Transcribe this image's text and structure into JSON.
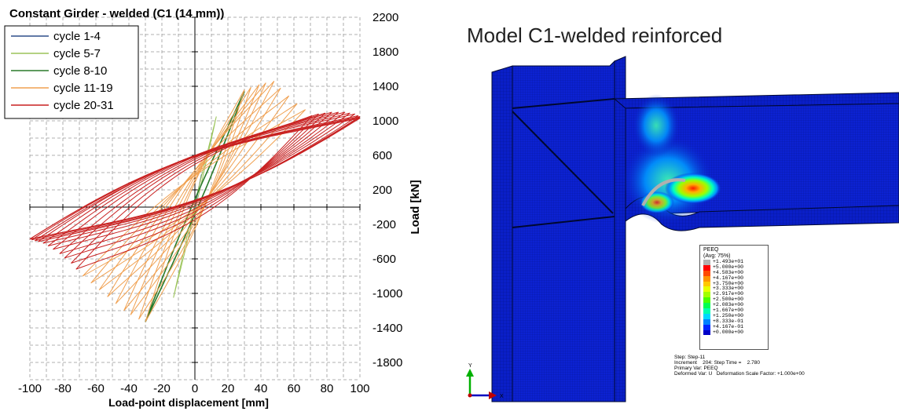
{
  "chart_data": {
    "type": "line",
    "title": "Constant Girder - welded (C1 (14 mm))",
    "xlabel": "Load-point displacement [mm]",
    "ylabel": "Load [kN]",
    "xlim": [
      -100,
      100
    ],
    "ylim": [
      -2000,
      2200
    ],
    "x_ticks": [
      "-100",
      "-80",
      "-60",
      "-40",
      "-20",
      "0",
      "20",
      "40",
      "60",
      "80",
      "100"
    ],
    "y_ticks": [
      "2200",
      "1800",
      "1400",
      "1000",
      "600",
      "200",
      "-200",
      "-600",
      "-1000",
      "-1400",
      "-1800"
    ],
    "grid": true,
    "legend_position": "top-left",
    "series": [
      {
        "name": "cycle 1-4",
        "color": "#2e4f8a",
        "peaks": [
          [
            4,
            380
          ],
          [
            -4,
            -380
          ]
        ]
      },
      {
        "name": "cycle 5-7",
        "color": "#9bc45a",
        "peaks": [
          [
            13,
            1050
          ],
          [
            -13,
            -1050
          ]
        ]
      },
      {
        "name": "cycle 8-10",
        "color": "#2a7a2a",
        "peaks": [
          [
            30,
            1340
          ],
          [
            -30,
            -1330
          ]
        ]
      },
      {
        "name": "cycle 11-19",
        "color": "#f0a050",
        "peaks": [
          [
            30,
            1360
          ],
          [
            34,
            1390
          ],
          [
            39,
            1420
          ],
          [
            43,
            1440
          ],
          [
            48,
            1460
          ],
          [
            52,
            1380
          ],
          [
            57,
            1290
          ],
          [
            62,
            1200
          ],
          [
            67,
            1130
          ],
          [
            -30,
            -1330
          ],
          [
            -34,
            -1300
          ],
          [
            -39,
            -1250
          ],
          [
            -43,
            -1200
          ],
          [
            -48,
            -1120
          ],
          [
            -53,
            -1040
          ],
          [
            -58,
            -960
          ],
          [
            -63,
            -880
          ],
          [
            -68,
            -800
          ]
        ]
      },
      {
        "name": "cycle 20-31",
        "color": "#c82020",
        "peaks": [
          [
            71,
            1060
          ],
          [
            75,
            1080
          ],
          [
            79,
            1090
          ],
          [
            83,
            1100
          ],
          [
            87,
            1100
          ],
          [
            91,
            1100
          ],
          [
            94,
            1090
          ],
          [
            97,
            1080
          ],
          [
            99,
            1060
          ],
          [
            100,
            1050
          ],
          [
            100,
            1040
          ],
          [
            100,
            1030
          ],
          [
            -72,
            -720
          ],
          [
            -75,
            -650
          ],
          [
            -79,
            -590
          ],
          [
            -82,
            -540
          ],
          [
            -86,
            -490
          ],
          [
            -89,
            -450
          ],
          [
            -92,
            -420
          ],
          [
            -95,
            -400
          ],
          [
            -97,
            -390
          ],
          [
            -99,
            -380
          ],
          [
            -100,
            -370
          ],
          [
            -100,
            -370
          ]
        ]
      }
    ]
  },
  "model": {
    "title": "Model C1-welded reinforced",
    "legend": {
      "title1": "PEEQ",
      "title2": "(Avg: 75%)",
      "entries": [
        "+1.493e+01",
        "+5.000e+00",
        "+4.583e+00",
        "+4.167e+00",
        "+3.750e+00",
        "+3.333e+00",
        "+2.917e+00",
        "+2.500e+00",
        "+2.083e+00",
        "+1.667e+00",
        "+1.250e+00",
        "+8.333e-01",
        "+4.167e-01",
        "+0.000e+00"
      ],
      "colors": [
        "#b0b0b0",
        "#ff0000",
        "#ff4a00",
        "#ff9400",
        "#ffc800",
        "#e8ff00",
        "#a2ff00",
        "#4aff00",
        "#00ff52",
        "#00ffae",
        "#00d8ff",
        "#0082ff",
        "#0026ff",
        "#0000c8"
      ]
    },
    "info": [
      "Step: Step-11",
      "Increment    204: Step Time =    2.780",
      "Primary Var: PEEQ",
      "Deformed Var: U   Deformation Scale Factor: +1.000e+00"
    ],
    "triad": {
      "y": "Y",
      "x": "X"
    }
  }
}
